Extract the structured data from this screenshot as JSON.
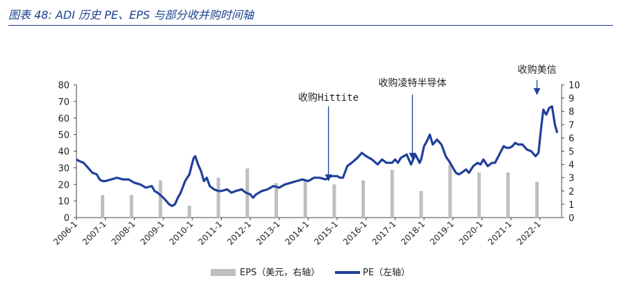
{
  "title": "图表 48: ADI 历史 PE、EPS 与部分收并购时间轴",
  "chart_data": {
    "type": "bar+line",
    "y_left": {
      "ticks": [
        0,
        10,
        20,
        30,
        40,
        50,
        60,
        70,
        80
      ],
      "range": [
        0,
        80
      ]
    },
    "y_right": {
      "ticks": [
        0,
        1,
        2,
        3,
        4,
        5,
        6,
        7,
        8,
        9,
        10
      ],
      "range": [
        0,
        10
      ]
    },
    "x_ticks": [
      "2006-1",
      "2007-1",
      "2008-1",
      "2009-1",
      "2010-1",
      "2011-1",
      "2012-1",
      "2013-1",
      "2014-1",
      "2015-1",
      "2016-1",
      "2017-1",
      "2018-1",
      "2019-1",
      "2020-1",
      "2021-1",
      "2022-1"
    ],
    "legend": [
      {
        "label": "EPS（美元，右轴）",
        "color": "#bfbfbf",
        "kind": "bar"
      },
      {
        "label": "PE（左轴）",
        "color": "#1f3f9a",
        "kind": "line"
      }
    ],
    "eps_series": {
      "name": "EPS（美元，右轴）",
      "color": "#bfbfbf",
      "points": [
        {
          "x": 2006.9,
          "y": 1.7
        },
        {
          "x": 2007.9,
          "y": 1.7
        },
        {
          "x": 2008.9,
          "y": 2.8
        },
        {
          "x": 2009.9,
          "y": 0.9
        },
        {
          "x": 2010.9,
          "y": 3.0
        },
        {
          "x": 2011.9,
          "y": 3.7
        },
        {
          "x": 2012.9,
          "y": 2.6
        },
        {
          "x": 2013.9,
          "y": 2.8
        },
        {
          "x": 2014.9,
          "y": 2.5
        },
        {
          "x": 2015.9,
          "y": 2.8
        },
        {
          "x": 2016.9,
          "y": 3.6
        },
        {
          "x": 2017.9,
          "y": 2.0
        },
        {
          "x": 2018.9,
          "y": 4.0
        },
        {
          "x": 2019.9,
          "y": 3.4
        },
        {
          "x": 2020.9,
          "y": 3.4
        },
        {
          "x": 2021.9,
          "y": 2.7
        }
      ]
    },
    "pe_series": {
      "name": "PE（左轴）",
      "color": "#1f3f9a",
      "points": [
        [
          2006.0,
          35
        ],
        [
          2006.1,
          34
        ],
        [
          2006.25,
          33
        ],
        [
          2006.4,
          30
        ],
        [
          2006.55,
          27
        ],
        [
          2006.7,
          26
        ],
        [
          2006.8,
          23
        ],
        [
          2006.9,
          22
        ],
        [
          2007.0,
          22
        ],
        [
          2007.2,
          23
        ],
        [
          2007.4,
          24
        ],
        [
          2007.6,
          23
        ],
        [
          2007.8,
          23
        ],
        [
          2008.0,
          21
        ],
        [
          2008.2,
          20
        ],
        [
          2008.3,
          19
        ],
        [
          2008.4,
          18
        ],
        [
          2008.6,
          19
        ],
        [
          2008.7,
          16
        ],
        [
          2008.8,
          15
        ],
        [
          2009.0,
          12
        ],
        [
          2009.1,
          10
        ],
        [
          2009.2,
          8
        ],
        [
          2009.3,
          7
        ],
        [
          2009.4,
          8
        ],
        [
          2009.5,
          12
        ],
        [
          2009.6,
          15
        ],
        [
          2009.75,
          22
        ],
        [
          2009.9,
          26
        ],
        [
          2010.0,
          33
        ],
        [
          2010.05,
          36
        ],
        [
          2010.1,
          37
        ],
        [
          2010.2,
          32
        ],
        [
          2010.3,
          28
        ],
        [
          2010.4,
          22
        ],
        [
          2010.5,
          24
        ],
        [
          2010.6,
          19
        ],
        [
          2010.75,
          17
        ],
        [
          2010.9,
          16
        ],
        [
          2011.0,
          16
        ],
        [
          2011.2,
          17
        ],
        [
          2011.35,
          15
        ],
        [
          2011.5,
          16
        ],
        [
          2011.7,
          17
        ],
        [
          2011.85,
          15
        ],
        [
          2012.0,
          14
        ],
        [
          2012.1,
          12
        ],
        [
          2012.2,
          14
        ],
        [
          2012.4,
          16
        ],
        [
          2012.6,
          17
        ],
        [
          2012.8,
          19
        ],
        [
          2013.0,
          18
        ],
        [
          2013.2,
          20
        ],
        [
          2013.4,
          21
        ],
        [
          2013.6,
          22
        ],
        [
          2013.8,
          23
        ],
        [
          2014.0,
          22
        ],
        [
          2014.2,
          24
        ],
        [
          2014.4,
          24
        ],
        [
          2014.6,
          23
        ],
        [
          2014.8,
          25
        ],
        [
          2015.0,
          25
        ],
        [
          2015.1,
          24
        ],
        [
          2015.2,
          24
        ],
        [
          2015.35,
          31
        ],
        [
          2015.5,
          33
        ],
        [
          2015.7,
          36
        ],
        [
          2015.85,
          39
        ],
        [
          2016.0,
          37
        ],
        [
          2016.2,
          35
        ],
        [
          2016.4,
          32
        ],
        [
          2016.55,
          35
        ],
        [
          2016.7,
          33
        ],
        [
          2016.9,
          33
        ],
        [
          2017.0,
          35
        ],
        [
          2017.1,
          33
        ],
        [
          2017.2,
          36
        ],
        [
          2017.4,
          38
        ],
        [
          2017.55,
          32
        ],
        [
          2017.7,
          38
        ],
        [
          2017.85,
          33
        ],
        [
          2017.9,
          35
        ],
        [
          2018.0,
          43
        ],
        [
          2018.1,
          46
        ],
        [
          2018.2,
          50
        ],
        [
          2018.3,
          44
        ],
        [
          2018.45,
          47
        ],
        [
          2018.6,
          44
        ],
        [
          2018.75,
          37
        ],
        [
          2018.9,
          33
        ],
        [
          2019.0,
          30
        ],
        [
          2019.1,
          27
        ],
        [
          2019.2,
          26
        ],
        [
          2019.3,
          27
        ],
        [
          2019.45,
          29
        ],
        [
          2019.55,
          27
        ],
        [
          2019.7,
          31
        ],
        [
          2019.85,
          33
        ],
        [
          2019.95,
          32
        ],
        [
          2020.05,
          35
        ],
        [
          2020.2,
          31
        ],
        [
          2020.35,
          33
        ],
        [
          2020.45,
          33
        ],
        [
          2020.6,
          38
        ],
        [
          2020.75,
          43
        ],
        [
          2020.85,
          42
        ],
        [
          2020.95,
          42
        ],
        [
          2021.05,
          43
        ],
        [
          2021.15,
          45
        ],
        [
          2021.25,
          44
        ],
        [
          2021.4,
          44
        ],
        [
          2021.55,
          41
        ],
        [
          2021.7,
          40
        ],
        [
          2021.85,
          37
        ],
        [
          2021.95,
          39
        ],
        [
          2022.05,
          55
        ],
        [
          2022.12,
          65
        ],
        [
          2022.22,
          62
        ],
        [
          2022.32,
          66
        ],
        [
          2022.42,
          67
        ],
        [
          2022.52,
          56
        ],
        [
          2022.6,
          51
        ]
      ]
    },
    "annotations": [
      {
        "text": "收购Hittite",
        "x": 2014.7,
        "y": 21
      },
      {
        "text": "收购凌特半导体",
        "x": 2017.6,
        "y": 34
      },
      {
        "text": "收购美信",
        "x": 2021.9,
        "y": 73
      }
    ]
  }
}
